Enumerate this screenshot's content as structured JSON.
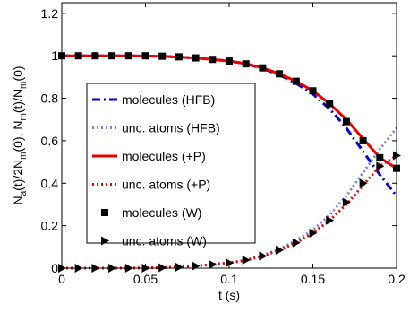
{
  "chart_data": {
    "type": "line",
    "title": "",
    "xlabel": "t (s)",
    "ylabel_parts": [
      "N",
      "a",
      "(t)/2N",
      "m",
      "(0), N",
      "m",
      "(t)/N",
      "m",
      "(0)"
    ],
    "xlim": [
      0,
      0.2
    ],
    "ylim": [
      0,
      1.25
    ],
    "xticks": [
      0,
      0.05,
      0.1,
      0.15,
      0.2
    ],
    "xtick_labels": [
      "0",
      "0.05",
      "0.1",
      "0.15",
      "0.2"
    ],
    "yticks": [
      0,
      0.2,
      0.4,
      0.6,
      0.8,
      1.0,
      1.2
    ],
    "ytick_labels": [
      "0",
      "0.2",
      "0.4",
      "0.6",
      "0.8",
      "1",
      "1.2"
    ],
    "grid": false,
    "legend_position": "center-left",
    "series": [
      {
        "name": "molecules (HFB)",
        "style": "dashdot",
        "color": "#0000cc",
        "x": [
          0,
          0.02,
          0.04,
          0.06,
          0.08,
          0.1,
          0.11,
          0.12,
          0.13,
          0.14,
          0.15,
          0.16,
          0.17,
          0.18,
          0.19,
          0.2
        ],
        "y": [
          1.0,
          1.0,
          1.0,
          0.998,
          0.99,
          0.975,
          0.962,
          0.94,
          0.91,
          0.87,
          0.82,
          0.75,
          0.66,
          0.55,
          0.44,
          0.34
        ]
      },
      {
        "name": "unc. atoms (HFB)",
        "style": "dotted",
        "color": "#7f7fd9",
        "x": [
          0,
          0.02,
          0.04,
          0.06,
          0.08,
          0.1,
          0.11,
          0.12,
          0.13,
          0.14,
          0.15,
          0.16,
          0.17,
          0.18,
          0.19,
          0.2
        ],
        "y": [
          0,
          0,
          0,
          0.002,
          0.01,
          0.025,
          0.038,
          0.06,
          0.09,
          0.13,
          0.18,
          0.25,
          0.34,
          0.45,
          0.56,
          0.66
        ]
      },
      {
        "name": "molecules (+P)",
        "style": "solid",
        "color": "#ee0000",
        "x": [
          0,
          0.02,
          0.04,
          0.06,
          0.08,
          0.1,
          0.11,
          0.12,
          0.13,
          0.14,
          0.15,
          0.16,
          0.17,
          0.18,
          0.19,
          0.2
        ],
        "y": [
          1.0,
          1.0,
          1.0,
          0.998,
          0.99,
          0.975,
          0.963,
          0.943,
          0.915,
          0.88,
          0.835,
          0.775,
          0.7,
          0.61,
          0.52,
          0.47
        ]
      },
      {
        "name": "unc. atoms (+P)",
        "style": "dotted",
        "color": "#ee0000",
        "x": [
          0,
          0.02,
          0.04,
          0.06,
          0.08,
          0.1,
          0.11,
          0.12,
          0.13,
          0.14,
          0.15,
          0.16,
          0.17,
          0.18,
          0.19,
          0.2
        ],
        "y": [
          0,
          0,
          0,
          0.002,
          0.01,
          0.025,
          0.037,
          0.057,
          0.085,
          0.12,
          0.165,
          0.225,
          0.3,
          0.39,
          0.48,
          0.53
        ]
      },
      {
        "name": "molecules (W)",
        "style": "marker-square",
        "color": "#000000",
        "x": [
          0,
          0.01,
          0.02,
          0.03,
          0.04,
          0.05,
          0.06,
          0.07,
          0.08,
          0.09,
          0.1,
          0.11,
          0.12,
          0.13,
          0.14,
          0.15,
          0.16,
          0.17,
          0.18,
          0.19,
          0.2
        ],
        "y": [
          1.0,
          1.0,
          1.0,
          1.0,
          1.0,
          1.0,
          0.998,
          0.995,
          0.99,
          0.983,
          0.975,
          0.962,
          0.943,
          0.915,
          0.88,
          0.835,
          0.775,
          0.69,
          0.6,
          0.52,
          0.47
        ]
      },
      {
        "name": "unc. atoms (W)",
        "style": "marker-triangle-right",
        "color": "#000000",
        "x": [
          0,
          0.01,
          0.02,
          0.03,
          0.04,
          0.05,
          0.06,
          0.07,
          0.08,
          0.09,
          0.1,
          0.11,
          0.12,
          0.13,
          0.14,
          0.15,
          0.16,
          0.17,
          0.18,
          0.19,
          0.2
        ],
        "y": [
          0,
          0,
          0,
          0,
          0,
          0,
          0.002,
          0.005,
          0.01,
          0.017,
          0.025,
          0.038,
          0.057,
          0.085,
          0.12,
          0.165,
          0.225,
          0.31,
          0.4,
          0.48,
          0.53
        ]
      }
    ]
  }
}
